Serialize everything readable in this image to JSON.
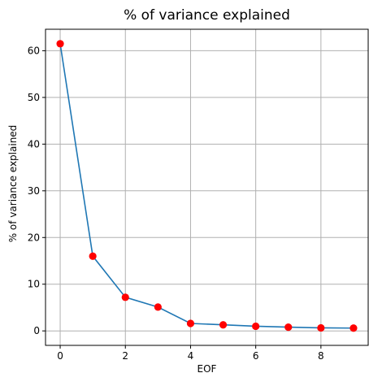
{
  "chart_data": {
    "type": "line",
    "title": "% of variance explained",
    "xlabel": "EOF",
    "ylabel": "% of variance explained",
    "x": [
      0,
      1,
      2,
      3,
      4,
      5,
      6,
      7,
      8,
      9
    ],
    "series": [
      {
        "values": [
          61.5,
          16.0,
          7.2,
          5.1,
          1.6,
          1.3,
          1.0,
          0.8,
          0.65,
          0.6
        ],
        "line_color": "#1f77b4",
        "marker_color": "#ff0000",
        "marker": "circle"
      }
    ],
    "xlim": [
      -0.45,
      9.45
    ],
    "ylim": [
      -3.1,
      64.6
    ],
    "xticks": [
      0,
      2,
      4,
      6,
      8
    ],
    "yticks": [
      0,
      10,
      20,
      30,
      40,
      50,
      60
    ],
    "xtick_labels": [
      "0",
      "2",
      "4",
      "6",
      "8"
    ],
    "ytick_labels": [
      "0",
      "10",
      "20",
      "30",
      "40",
      "50",
      "60"
    ],
    "grid": true,
    "grid_color": "#b0b0b0",
    "legend": "none"
  }
}
